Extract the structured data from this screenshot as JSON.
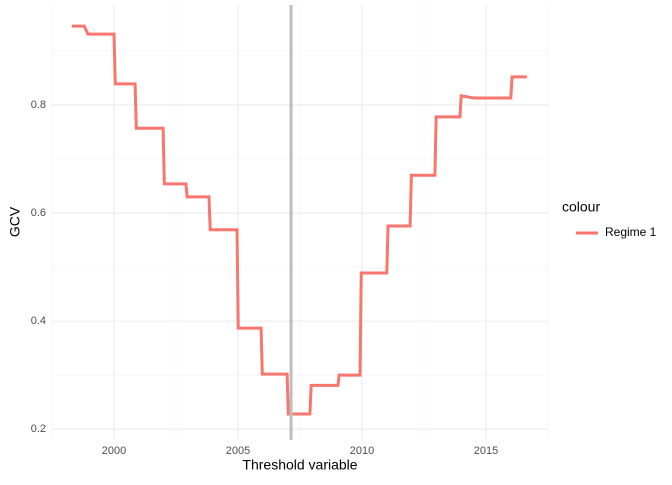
{
  "chart_data": {
    "type": "line",
    "x_label": "Threshold variable",
    "y_label": "GCV",
    "legend_title": "colour",
    "series": [
      {
        "name": "Regime 1",
        "color": "#f8766d",
        "x": [
          1998.3,
          1998.8,
          1998.95,
          2000,
          2000.05,
          2000.85,
          2000.9,
          2001.98,
          2002.03,
          2002.9,
          2002.95,
          2003.83,
          2003.88,
          2004.96,
          2005.01,
          2005.93,
          2005.98,
          2006.98,
          2007.03,
          2007.9,
          2007.95,
          2009.03,
          2009.08,
          2009.92,
          2009.97,
          2011.0,
          2011.05,
          2011.94,
          2011.99,
          2012.94,
          2012.99,
          2013.95,
          2014.0,
          2014.5,
          2016.0,
          2016.05,
          2016.65
        ],
        "values": [
          0.946,
          0.946,
          0.931,
          0.931,
          0.839,
          0.839,
          0.757,
          0.757,
          0.654,
          0.654,
          0.63,
          0.63,
          0.569,
          0.569,
          0.387,
          0.387,
          0.302,
          0.302,
          0.228,
          0.228,
          0.281,
          0.281,
          0.3,
          0.3,
          0.489,
          0.489,
          0.576,
          0.576,
          0.67,
          0.67,
          0.778,
          0.778,
          0.817,
          0.813,
          0.813,
          0.852,
          0.852
        ]
      }
    ],
    "vline": {
      "x": 2007.14,
      "color": "#bebebe"
    },
    "xlim": [
      1997.5,
      2017.5
    ],
    "xticks": [
      2000,
      2005,
      2010,
      2015
    ],
    "ylim": [
      0.18,
      0.985
    ],
    "yticks": [
      0.2,
      0.4,
      0.6,
      0.8
    ],
    "grid": true,
    "legend_position": "right"
  }
}
